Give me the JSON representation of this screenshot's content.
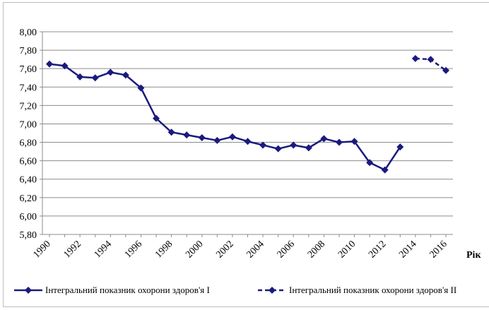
{
  "chart_data": {
    "type": "line",
    "title": "",
    "xlabel": "Рік",
    "ylabel": "",
    "ylim": [
      5.8,
      8.0
    ],
    "xlim": [
      1990,
      2016
    ],
    "y_ticks": [
      "5,80",
      "6,00",
      "6,20",
      "6,40",
      "6,60",
      "6,80",
      "7,00",
      "7,20",
      "7,40",
      "7,60",
      "7,80",
      "8,00"
    ],
    "x_ticks": [
      "1990",
      "1992",
      "1994",
      "1996",
      "1998",
      "2000",
      "2002",
      "2004",
      "2006",
      "2008",
      "2010",
      "2012",
      "2014",
      "2016"
    ],
    "grid": true,
    "legend_position": "bottom",
    "color": "#1a1a7e",
    "series": [
      {
        "name": "Інтегральний показник охорони здоров'я I",
        "style": "solid",
        "x": [
          1990,
          1991,
          1992,
          1993,
          1994,
          1995,
          1996,
          1997,
          1998,
          1999,
          2000,
          2001,
          2002,
          2003,
          2004,
          2005,
          2006,
          2007,
          2008,
          2009,
          2010,
          2011,
          2012,
          2013
        ],
        "values": [
          7.65,
          7.63,
          7.51,
          7.5,
          7.56,
          7.53,
          7.39,
          7.06,
          6.91,
          6.88,
          6.85,
          6.82,
          6.86,
          6.81,
          6.77,
          6.73,
          6.77,
          6.74,
          6.84,
          6.8,
          6.81,
          6.58,
          6.5,
          6.75
        ]
      },
      {
        "name": "Інтегральний показник охорони здоров'я II",
        "style": "dashed",
        "x": [
          2014,
          2015,
          2016
        ],
        "values": [
          7.71,
          7.7,
          7.58
        ]
      }
    ]
  }
}
